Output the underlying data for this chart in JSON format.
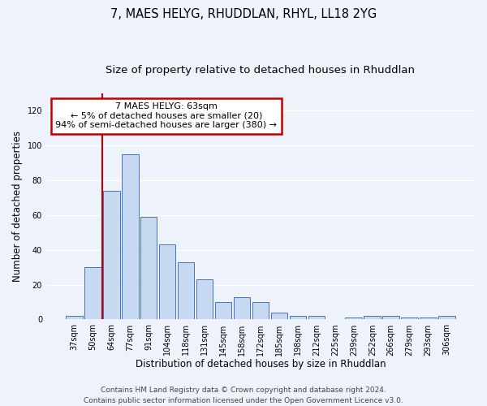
{
  "title": "7, MAES HELYG, RHUDDLAN, RHYL, LL18 2YG",
  "subtitle": "Size of property relative to detached houses in Rhuddlan",
  "xlabel": "Distribution of detached houses by size in Rhuddlan",
  "ylabel": "Number of detached properties",
  "categories": [
    "37sqm",
    "50sqm",
    "64sqm",
    "77sqm",
    "91sqm",
    "104sqm",
    "118sqm",
    "131sqm",
    "145sqm",
    "158sqm",
    "172sqm",
    "185sqm",
    "198sqm",
    "212sqm",
    "225sqm",
    "239sqm",
    "252sqm",
    "266sqm",
    "279sqm",
    "293sqm",
    "306sqm"
  ],
  "values": [
    2,
    30,
    74,
    95,
    59,
    43,
    33,
    23,
    10,
    13,
    10,
    4,
    2,
    2,
    0,
    1,
    2,
    2,
    1,
    1,
    2
  ],
  "bar_color": "#c6d9f1",
  "bar_edge_color": "#4472c4",
  "highlight_color": "#c00000",
  "annotation_line1": "7 MAES HELYG: 63sqm",
  "annotation_line2": "← 5% of detached houses are smaller (20)",
  "annotation_line3": "94% of semi-detached houses are larger (380) →",
  "annotation_box_color": "#ffffff",
  "annotation_box_edge_color": "#c00000",
  "vline_x": 1.5,
  "ylim": [
    0,
    130
  ],
  "yticks": [
    0,
    20,
    40,
    60,
    80,
    100,
    120
  ],
  "background_color": "#eef2fb",
  "grid_color": "#ffffff",
  "footer_line1": "Contains HM Land Registry data © Crown copyright and database right 2024.",
  "footer_line2": "Contains public sector information licensed under the Open Government Licence v3.0.",
  "title_fontsize": 10.5,
  "subtitle_fontsize": 9.5,
  "xlabel_fontsize": 8.5,
  "ylabel_fontsize": 8.5,
  "tick_fontsize": 7,
  "annotation_fontsize": 8,
  "footer_fontsize": 6.5
}
